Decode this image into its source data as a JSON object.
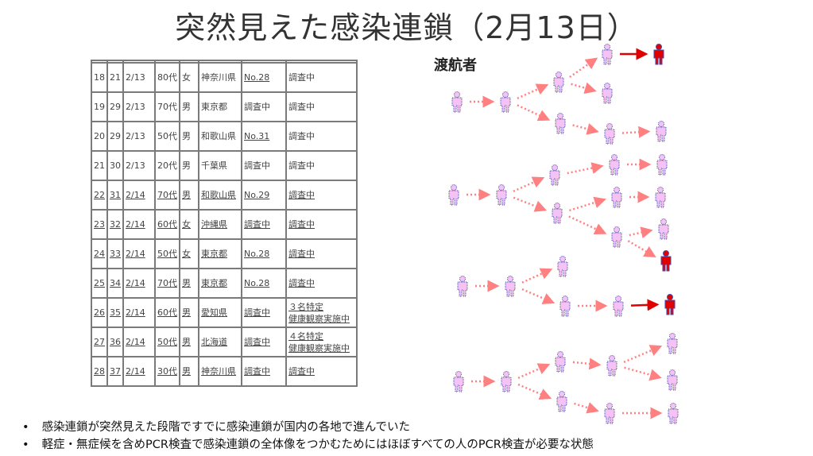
{
  "title": "突然見えた感染連鎖（2月13日）",
  "table": {
    "rows": [
      [
        "18",
        "21",
        "2/13",
        "80代",
        "女",
        "神奈川県",
        "No.28",
        "調査中"
      ],
      [
        "19",
        "29",
        "2/13",
        "70代",
        "男",
        "東京都",
        "調査中",
        "調査中"
      ],
      [
        "20",
        "29",
        "2/13",
        "50代",
        "男",
        "和歌山県",
        "No.31",
        "調査中"
      ],
      [
        "21",
        "30",
        "2/13",
        "20代",
        "男",
        "千葉県",
        "調査中",
        "調査中"
      ],
      [
        "22",
        "31",
        "2/14",
        "70代",
        "男",
        "和歌山県",
        "No.29",
        "調査中"
      ],
      [
        "23",
        "32",
        "2/14",
        "60代",
        "女",
        "沖縄県",
        "調査中",
        "調査中"
      ],
      [
        "24",
        "33",
        "2/14",
        "50代",
        "女",
        "東京都",
        "No.28",
        "調査中"
      ],
      [
        "25",
        "34",
        "2/14",
        "70代",
        "男",
        "東京都",
        "No.28",
        "調査中"
      ],
      [
        "26",
        "35",
        "2/14",
        "60代",
        "男",
        "愛知県",
        "調査中",
        "３名特定\n健康観察実施中"
      ],
      [
        "27",
        "36",
        "2/14",
        "50代",
        "男",
        "北海道",
        "調査中",
        "４名特定\n健康観察実施中"
      ],
      [
        "28",
        "37",
        "2/14",
        "30代",
        "男",
        "神奈川県",
        "調査中",
        "調査中"
      ]
    ]
  },
  "diagram": {
    "label": "渡航者",
    "colors": {
      "person": "#f4c2f4",
      "outline": "#4a4aa8",
      "infected": "#e00000",
      "arrow": "#ff8080"
    }
  },
  "bullets": [
    "感染連鎖が突然見えた段階ですでに感染連鎖が国内の各地で進んでいた",
    "軽症・無症候を含めPCR検査で感染連鎖の全体像をつかむためにはほぼすべての人のPCR検査が必要な状態"
  ]
}
